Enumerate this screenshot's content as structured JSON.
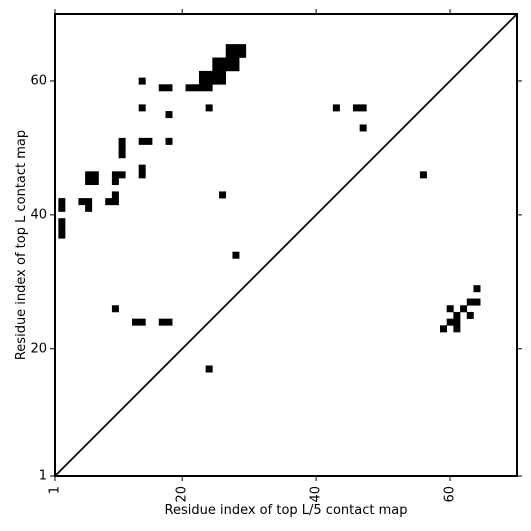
{
  "chart_data": {
    "type": "heatmap",
    "title": "",
    "xlabel": "Residue index of top L/5 contact map",
    "ylabel": "Residue index of top L contact map",
    "xlim": [
      1,
      70
    ],
    "ylim": [
      1,
      70
    ],
    "x_ticks": [
      1,
      20,
      40,
      60
    ],
    "y_ticks": [
      1,
      20,
      40,
      60
    ],
    "x_tick_labels": [
      "1",
      "20",
      "40",
      "60"
    ],
    "y_tick_labels": [
      "1",
      "20",
      "40",
      "60"
    ],
    "x_tick_rotation": 270,
    "diagonal": true,
    "cell_color": "#000000",
    "upper_contacts": [
      [
        14,
        60
      ],
      [
        17,
        59
      ],
      [
        18,
        59
      ],
      [
        21,
        59
      ],
      [
        22,
        59
      ],
      [
        23,
        59
      ],
      [
        24,
        59
      ],
      [
        23,
        60
      ],
      [
        24,
        60
      ],
      [
        25,
        60
      ],
      [
        26,
        60
      ],
      [
        23,
        61
      ],
      [
        24,
        61
      ],
      [
        25,
        61
      ],
      [
        26,
        61
      ],
      [
        25,
        62
      ],
      [
        26,
        62
      ],
      [
        27,
        62
      ],
      [
        28,
        62
      ],
      [
        25,
        63
      ],
      [
        26,
        63
      ],
      [
        27,
        63
      ],
      [
        28,
        63
      ],
      [
        27,
        64
      ],
      [
        28,
        64
      ],
      [
        29,
        64
      ],
      [
        27,
        65
      ],
      [
        28,
        65
      ],
      [
        29,
        65
      ],
      [
        14,
        56
      ],
      [
        18,
        55
      ],
      [
        24,
        56
      ],
      [
        43,
        56
      ],
      [
        46,
        56
      ],
      [
        47,
        56
      ],
      [
        47,
        53
      ],
      [
        11,
        51
      ],
      [
        14,
        51
      ],
      [
        15,
        51
      ],
      [
        18,
        51
      ],
      [
        11,
        50
      ],
      [
        11,
        49
      ],
      [
        14,
        47
      ],
      [
        10,
        46
      ],
      [
        11,
        46
      ],
      [
        14,
        46
      ],
      [
        56,
        46
      ],
      [
        6,
        46
      ],
      [
        7,
        46
      ],
      [
        6,
        45
      ],
      [
        7,
        45
      ],
      [
        10,
        45
      ],
      [
        10,
        43
      ],
      [
        26,
        43
      ],
      [
        5,
        42
      ],
      [
        6,
        42
      ],
      [
        9,
        42
      ],
      [
        10,
        42
      ],
      [
        6,
        41
      ],
      [
        2,
        42
      ],
      [
        2,
        41
      ],
      [
        2,
        39
      ],
      [
        2,
        38
      ],
      [
        2,
        37
      ],
      [
        28,
        34
      ]
    ],
    "lower_contacts": [
      [
        10,
        26
      ],
      [
        13,
        24
      ],
      [
        14,
        24
      ],
      [
        17,
        24
      ],
      [
        18,
        24
      ],
      [
        24,
        17
      ],
      [
        64,
        29
      ],
      [
        63,
        27
      ],
      [
        64,
        27
      ],
      [
        60,
        26
      ],
      [
        62,
        26
      ],
      [
        61,
        25
      ],
      [
        63,
        25
      ],
      [
        60,
        24
      ],
      [
        61,
        24
      ],
      [
        59,
        23
      ],
      [
        61,
        23
      ]
    ]
  }
}
